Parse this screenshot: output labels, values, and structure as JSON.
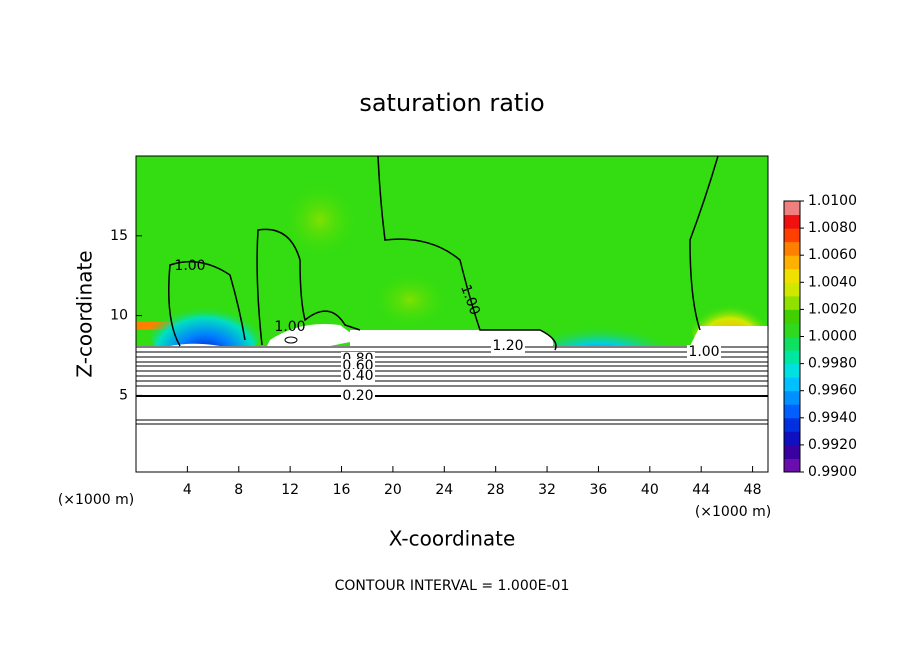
{
  "chart_data": {
    "type": "contour",
    "title": "saturation ratio",
    "x_label": "X-coordinate",
    "y_label": "Z-coordinate",
    "x_unit": "(×1000 m)",
    "y_unit": "(×1000 m)",
    "footer": "CONTOUR INTERVAL = 1.000E-01",
    "xlim": [
      0,
      49.2
    ],
    "xticks": [
      4,
      8,
      12,
      16,
      20,
      24,
      28,
      32,
      36,
      40,
      44,
      48
    ],
    "ylim": [
      0.2,
      20
    ],
    "yticks": [
      5,
      10,
      15
    ],
    "contour_labels": [
      "1.00",
      "1.00",
      "1.00",
      "1.20",
      "0.80",
      "0.60",
      "0.40",
      "0.20",
      "1.00"
    ],
    "colorbar": {
      "lim": [
        0.99,
        1.01
      ],
      "colors": [
        "#6a0dad",
        "#3a00a0",
        "#1010c0",
        "#0030e0",
        "#0060ff",
        "#0090ff",
        "#00c0ff",
        "#00e0e0",
        "#00e8a0",
        "#10e060",
        "#30d820",
        "#40d000",
        "#90e000",
        "#d0e800",
        "#f0e000",
        "#ffb000",
        "#ff8000",
        "#ff4000",
        "#f01010",
        "#f08080"
      ],
      "ticks": [
        {
          "value": 0.99,
          "label": "0.9900"
        },
        {
          "value": 0.992,
          "label": "0.9920"
        },
        {
          "value": 0.994,
          "label": "0.9940"
        },
        {
          "value": 0.996,
          "label": "0.9960"
        },
        {
          "value": 0.998,
          "label": "0.9980"
        },
        {
          "value": 1,
          "label": "1.0000"
        },
        {
          "value": 1.002,
          "label": "1.0020"
        },
        {
          "value": 1.004,
          "label": "1.0040"
        },
        {
          "value": 1.006,
          "label": "1.0060"
        },
        {
          "value": 1.008,
          "label": "1.0080"
        },
        {
          "value": 1.01,
          "label": "1.0100"
        }
      ]
    }
  }
}
